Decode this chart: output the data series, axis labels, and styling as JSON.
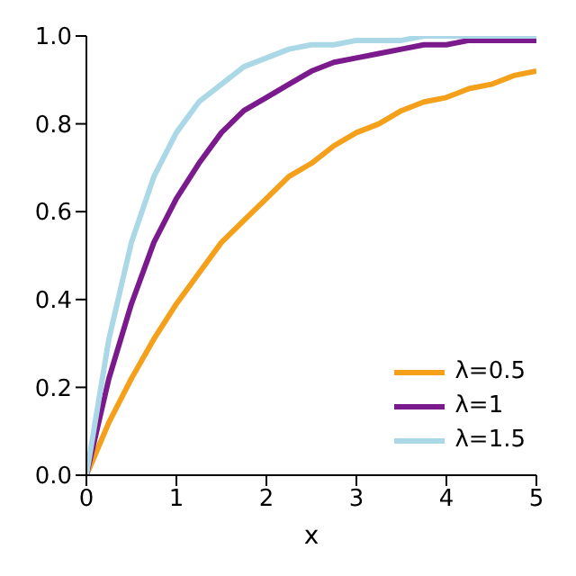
{
  "chart_data": {
    "type": "line",
    "xlabel": "x",
    "x": [
      0,
      0.25,
      0.5,
      0.75,
      1,
      1.25,
      1.5,
      1.75,
      2,
      2.25,
      2.5,
      2.75,
      3,
      3.25,
      3.5,
      3.75,
      4,
      4.25,
      4.5,
      4.75,
      5
    ],
    "series": [
      {
        "name": "λ=0.5",
        "color": "#f5a01a",
        "values": [
          0,
          0.12,
          0.22,
          0.31,
          0.39,
          0.46,
          0.53,
          0.58,
          0.63,
          0.68,
          0.71,
          0.75,
          0.78,
          0.8,
          0.83,
          0.85,
          0.86,
          0.88,
          0.89,
          0.91,
          0.92
        ]
      },
      {
        "name": "λ=1",
        "color": "#7b1a8c",
        "values": [
          0,
          0.22,
          0.39,
          0.53,
          0.63,
          0.71,
          0.78,
          0.83,
          0.86,
          0.89,
          0.92,
          0.94,
          0.95,
          0.96,
          0.97,
          0.98,
          0.98,
          0.99,
          0.99,
          0.99,
          0.99
        ]
      },
      {
        "name": "λ=1.5",
        "color": "#aad8e6",
        "values": [
          0,
          0.31,
          0.53,
          0.68,
          0.78,
          0.85,
          0.89,
          0.93,
          0.95,
          0.97,
          0.98,
          0.98,
          0.99,
          0.99,
          0.99,
          1,
          1,
          1,
          1,
          1,
          1
        ]
      }
    ],
    "xlim": [
      0,
      5
    ],
    "xticks": [
      0,
      1,
      2,
      3,
      4,
      5
    ],
    "ylim": [
      0,
      1
    ],
    "yticks": [
      {
        "value": 0,
        "label": "0.0"
      },
      0.2,
      0.4,
      0.6,
      0.8,
      {
        "value": 1,
        "label": "1.0"
      }
    ],
    "legend": "bottom right",
    "marker": "none",
    "line_style": "solid",
    "grid": false
  }
}
